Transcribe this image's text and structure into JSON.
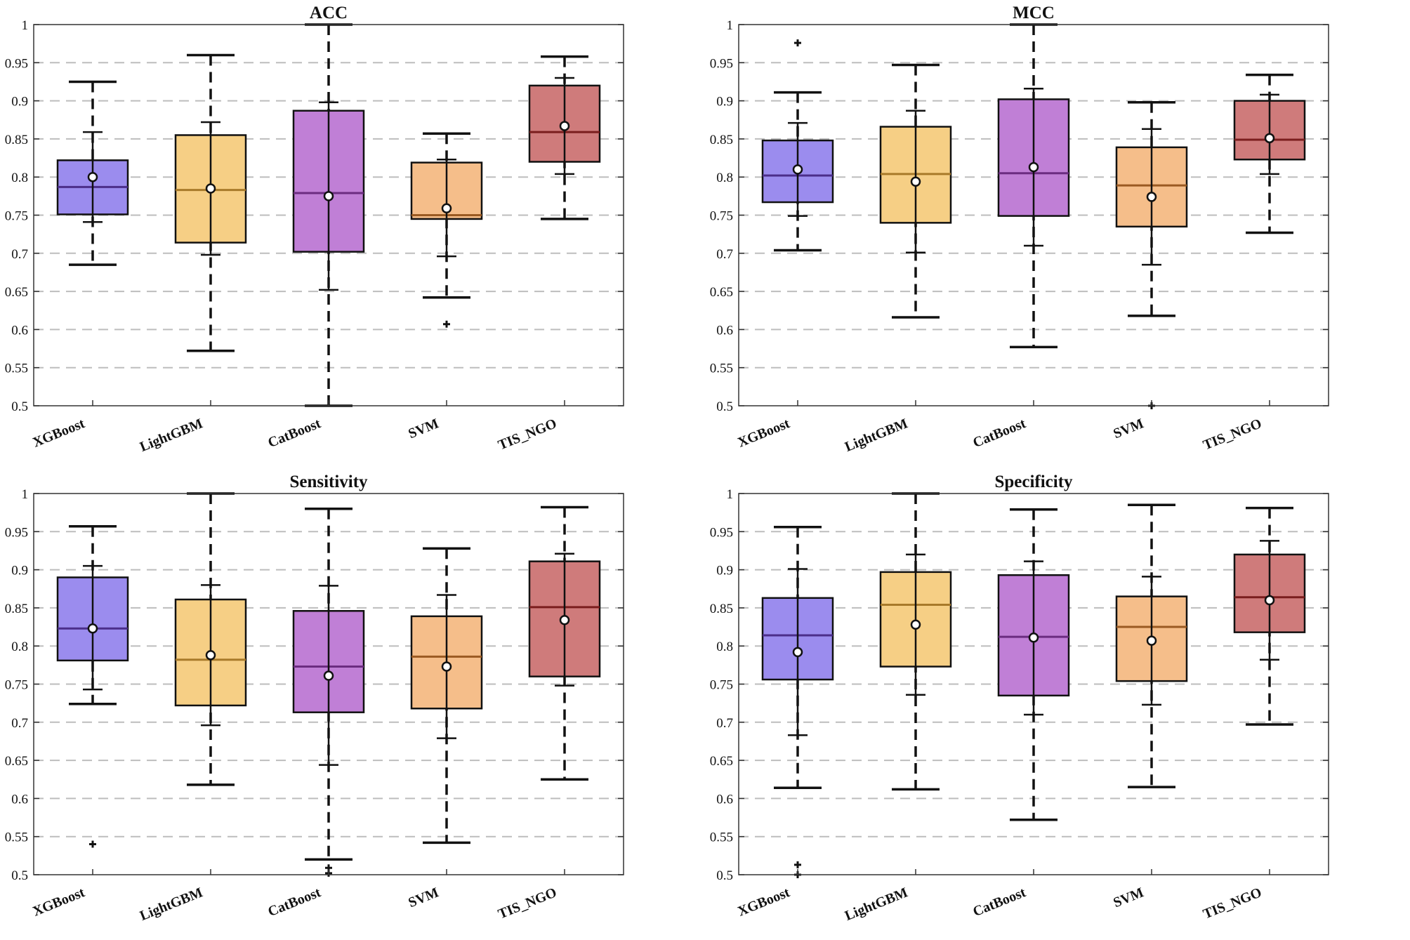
{
  "chart_data": [
    {
      "type": "box",
      "title": "ACC",
      "ylim": [
        0.5,
        1.0
      ],
      "yticks": [
        "0.5",
        "0.55",
        "0.6",
        "0.65",
        "0.7",
        "0.75",
        "0.8",
        "0.85",
        "0.9",
        "0.95",
        "1"
      ],
      "grid": "horizontal-dashed",
      "categories": [
        "XGBoost",
        "LightGBM",
        "CatBoost",
        "SVM",
        "TIS_NGO"
      ],
      "colors": [
        "#9b8cee",
        "#f6cf85",
        "#c07fd6",
        "#f5be8a",
        "#cf7b7b"
      ],
      "medianColors": [
        "#4b2e8a",
        "#a87a2a",
        "#6b2c80",
        "#9a5a22",
        "#7a1d1d"
      ],
      "boxes": [
        {
          "whiskerLow": 0.685,
          "whiskerHigh": 0.925,
          "q1": 0.751,
          "median": 0.787,
          "q3": 0.822,
          "mean": 0.8,
          "sdLow": 0.741,
          "sdHigh": 0.859,
          "outliers": []
        },
        {
          "whiskerLow": 0.572,
          "whiskerHigh": 0.96,
          "q1": 0.714,
          "median": 0.783,
          "q3": 0.855,
          "mean": 0.785,
          "sdLow": 0.698,
          "sdHigh": 0.872,
          "outliers": []
        },
        {
          "whiskerLow": 0.5,
          "whiskerHigh": 1.0,
          "q1": 0.702,
          "median": 0.779,
          "q3": 0.887,
          "mean": 0.775,
          "sdLow": 0.652,
          "sdHigh": 0.898,
          "outliers": []
        },
        {
          "whiskerLow": 0.642,
          "whiskerHigh": 0.857,
          "q1": 0.745,
          "median": 0.75,
          "q3": 0.819,
          "mean": 0.759,
          "sdLow": 0.696,
          "sdHigh": 0.823,
          "outliers": [
            0.607
          ]
        },
        {
          "whiskerLow": 0.745,
          "whiskerHigh": 0.958,
          "q1": 0.82,
          "median": 0.859,
          "q3": 0.92,
          "mean": 0.867,
          "sdLow": 0.804,
          "sdHigh": 0.93,
          "outliers": []
        }
      ]
    },
    {
      "type": "box",
      "title": "MCC",
      "ylim": [
        0.5,
        1.0
      ],
      "yticks": [
        "0.5",
        "0.55",
        "0.6",
        "0.65",
        "0.7",
        "0.75",
        "0.8",
        "0.85",
        "0.9",
        "0.95",
        "1"
      ],
      "grid": "horizontal-dashed",
      "categories": [
        "XGBoost",
        "LightGBM",
        "CatBoost",
        "SVM",
        "TIS_NGO"
      ],
      "colors": [
        "#9b8cee",
        "#f6cf85",
        "#c07fd6",
        "#f5be8a",
        "#cf7b7b"
      ],
      "medianColors": [
        "#4b2e8a",
        "#a87a2a",
        "#6b2c80",
        "#9a5a22",
        "#7a1d1d"
      ],
      "boxes": [
        {
          "whiskerLow": 0.704,
          "whiskerHigh": 0.911,
          "q1": 0.767,
          "median": 0.802,
          "q3": 0.848,
          "mean": 0.81,
          "sdLow": 0.749,
          "sdHigh": 0.871,
          "outliers": [
            0.976
          ]
        },
        {
          "whiskerLow": 0.616,
          "whiskerHigh": 0.947,
          "q1": 0.74,
          "median": 0.804,
          "q3": 0.866,
          "mean": 0.794,
          "sdLow": 0.701,
          "sdHigh": 0.887,
          "outliers": []
        },
        {
          "whiskerLow": 0.577,
          "whiskerHigh": 1.0,
          "q1": 0.749,
          "median": 0.805,
          "q3": 0.902,
          "mean": 0.813,
          "sdLow": 0.71,
          "sdHigh": 0.916,
          "outliers": []
        },
        {
          "whiskerLow": 0.618,
          "whiskerHigh": 0.898,
          "q1": 0.735,
          "median": 0.789,
          "q3": 0.839,
          "mean": 0.774,
          "sdLow": 0.685,
          "sdHigh": 0.863,
          "outliers": [
            0.5
          ]
        },
        {
          "whiskerLow": 0.727,
          "whiskerHigh": 0.934,
          "q1": 0.823,
          "median": 0.849,
          "q3": 0.9,
          "mean": 0.851,
          "sdLow": 0.804,
          "sdHigh": 0.908,
          "outliers": []
        }
      ]
    },
    {
      "type": "box",
      "title": "Sensitivity",
      "ylim": [
        0.5,
        1.0
      ],
      "yticks": [
        "0.5",
        "0.55",
        "0.6",
        "0.65",
        "0.7",
        "0.75",
        "0.8",
        "0.85",
        "0.9",
        "0.95",
        "1"
      ],
      "grid": "horizontal-dashed",
      "categories": [
        "XGBoost",
        "LightGBM",
        "CatBoost",
        "SVM",
        "TIS_NGO"
      ],
      "colors": [
        "#9b8cee",
        "#f6cf85",
        "#c07fd6",
        "#f5be8a",
        "#cf7b7b"
      ],
      "medianColors": [
        "#4b2e8a",
        "#a87a2a",
        "#6b2c80",
        "#9a5a22",
        "#7a1d1d"
      ],
      "boxes": [
        {
          "whiskerLow": 0.724,
          "whiskerHigh": 0.957,
          "q1": 0.781,
          "median": 0.823,
          "q3": 0.89,
          "mean": 0.823,
          "sdLow": 0.743,
          "sdHigh": 0.905,
          "outliers": [
            0.54
          ]
        },
        {
          "whiskerLow": 0.618,
          "whiskerHigh": 1.0,
          "q1": 0.722,
          "median": 0.782,
          "q3": 0.861,
          "mean": 0.788,
          "sdLow": 0.696,
          "sdHigh": 0.88,
          "outliers": []
        },
        {
          "whiskerLow": 0.52,
          "whiskerHigh": 0.98,
          "q1": 0.713,
          "median": 0.773,
          "q3": 0.846,
          "mean": 0.761,
          "sdLow": 0.644,
          "sdHigh": 0.879,
          "outliers": [
            0.509,
            0.502
          ]
        },
        {
          "whiskerLow": 0.542,
          "whiskerHigh": 0.928,
          "q1": 0.718,
          "median": 0.786,
          "q3": 0.839,
          "mean": 0.773,
          "sdLow": 0.679,
          "sdHigh": 0.867,
          "outliers": []
        },
        {
          "whiskerLow": 0.625,
          "whiskerHigh": 0.982,
          "q1": 0.76,
          "median": 0.851,
          "q3": 0.911,
          "mean": 0.834,
          "sdLow": 0.748,
          "sdHigh": 0.921,
          "outliers": []
        }
      ]
    },
    {
      "type": "box",
      "title": "Specificity",
      "ylim": [
        0.5,
        1.0
      ],
      "yticks": [
        "0.5",
        "0.55",
        "0.6",
        "0.65",
        "0.7",
        "0.75",
        "0.8",
        "0.85",
        "0.9",
        "0.95",
        "1"
      ],
      "grid": "horizontal-dashed",
      "categories": [
        "XGBoost",
        "LightGBM",
        "CatBoost",
        "SVM",
        "TIS_NGO"
      ],
      "colors": [
        "#9b8cee",
        "#f6cf85",
        "#c07fd6",
        "#f5be8a",
        "#cf7b7b"
      ],
      "medianColors": [
        "#4b2e8a",
        "#a87a2a",
        "#6b2c80",
        "#9a5a22",
        "#7a1d1d"
      ],
      "boxes": [
        {
          "whiskerLow": 0.614,
          "whiskerHigh": 0.956,
          "q1": 0.756,
          "median": 0.814,
          "q3": 0.863,
          "mean": 0.792,
          "sdLow": 0.683,
          "sdHigh": 0.901,
          "outliers": [
            0.513,
            0.5
          ]
        },
        {
          "whiskerLow": 0.612,
          "whiskerHigh": 1.0,
          "q1": 0.773,
          "median": 0.854,
          "q3": 0.897,
          "mean": 0.828,
          "sdLow": 0.736,
          "sdHigh": 0.92,
          "outliers": []
        },
        {
          "whiskerLow": 0.572,
          "whiskerHigh": 0.979,
          "q1": 0.735,
          "median": 0.812,
          "q3": 0.893,
          "mean": 0.811,
          "sdLow": 0.71,
          "sdHigh": 0.911,
          "outliers": []
        },
        {
          "whiskerLow": 0.615,
          "whiskerHigh": 0.985,
          "q1": 0.754,
          "median": 0.825,
          "q3": 0.865,
          "mean": 0.807,
          "sdLow": 0.723,
          "sdHigh": 0.891,
          "outliers": []
        },
        {
          "whiskerLow": 0.697,
          "whiskerHigh": 0.981,
          "q1": 0.818,
          "median": 0.864,
          "q3": 0.92,
          "mean": 0.86,
          "sdLow": 0.782,
          "sdHigh": 0.938,
          "outliers": []
        }
      ]
    }
  ]
}
